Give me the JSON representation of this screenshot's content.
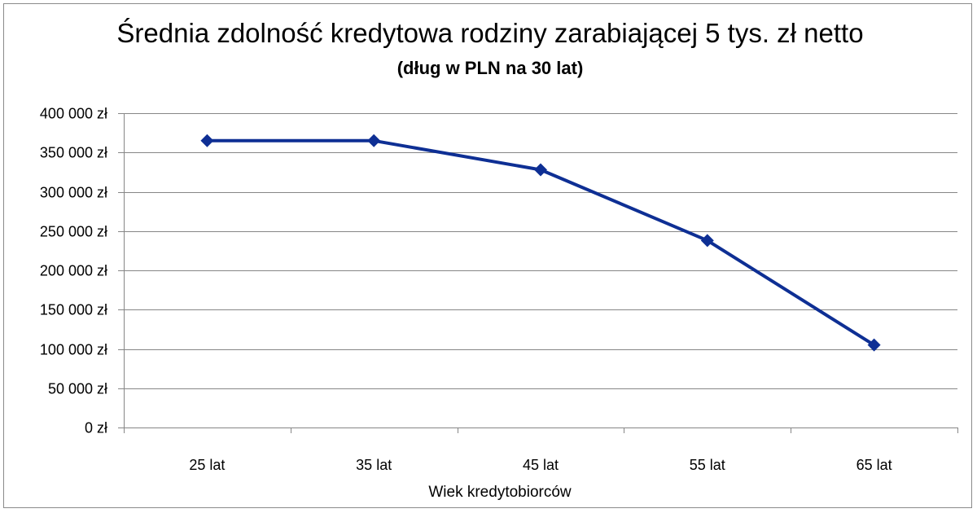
{
  "chart_data": {
    "type": "line",
    "title": "Średnia zdolność kredytowa rodziny zarabiającej 5 tys. zł netto",
    "subtitle": "(dług w PLN na 30 lat)",
    "xlabel": "Wiek kredytobiorców",
    "ylabel": "",
    "categories": [
      "25 lat",
      "35 lat",
      "45 lat",
      "55 lat",
      "65 lat"
    ],
    "series": [
      {
        "values": [
          365000,
          365000,
          328000,
          238000,
          105000
        ],
        "color": "#0e2f94"
      }
    ],
    "ylim": [
      0,
      400000
    ],
    "yticks": [
      0,
      50000,
      100000,
      150000,
      200000,
      250000,
      300000,
      350000,
      400000
    ],
    "ytick_labels": [
      "0 zł",
      "50 000 zł",
      "100 000 zł",
      "150 000 zł",
      "200 000 zł",
      "250 000 zł",
      "300 000 zł",
      "350 000 zł",
      "400 000 zł"
    ],
    "grid": true,
    "legend": "none",
    "marker": "diamond",
    "gridline_color": "#868686"
  }
}
